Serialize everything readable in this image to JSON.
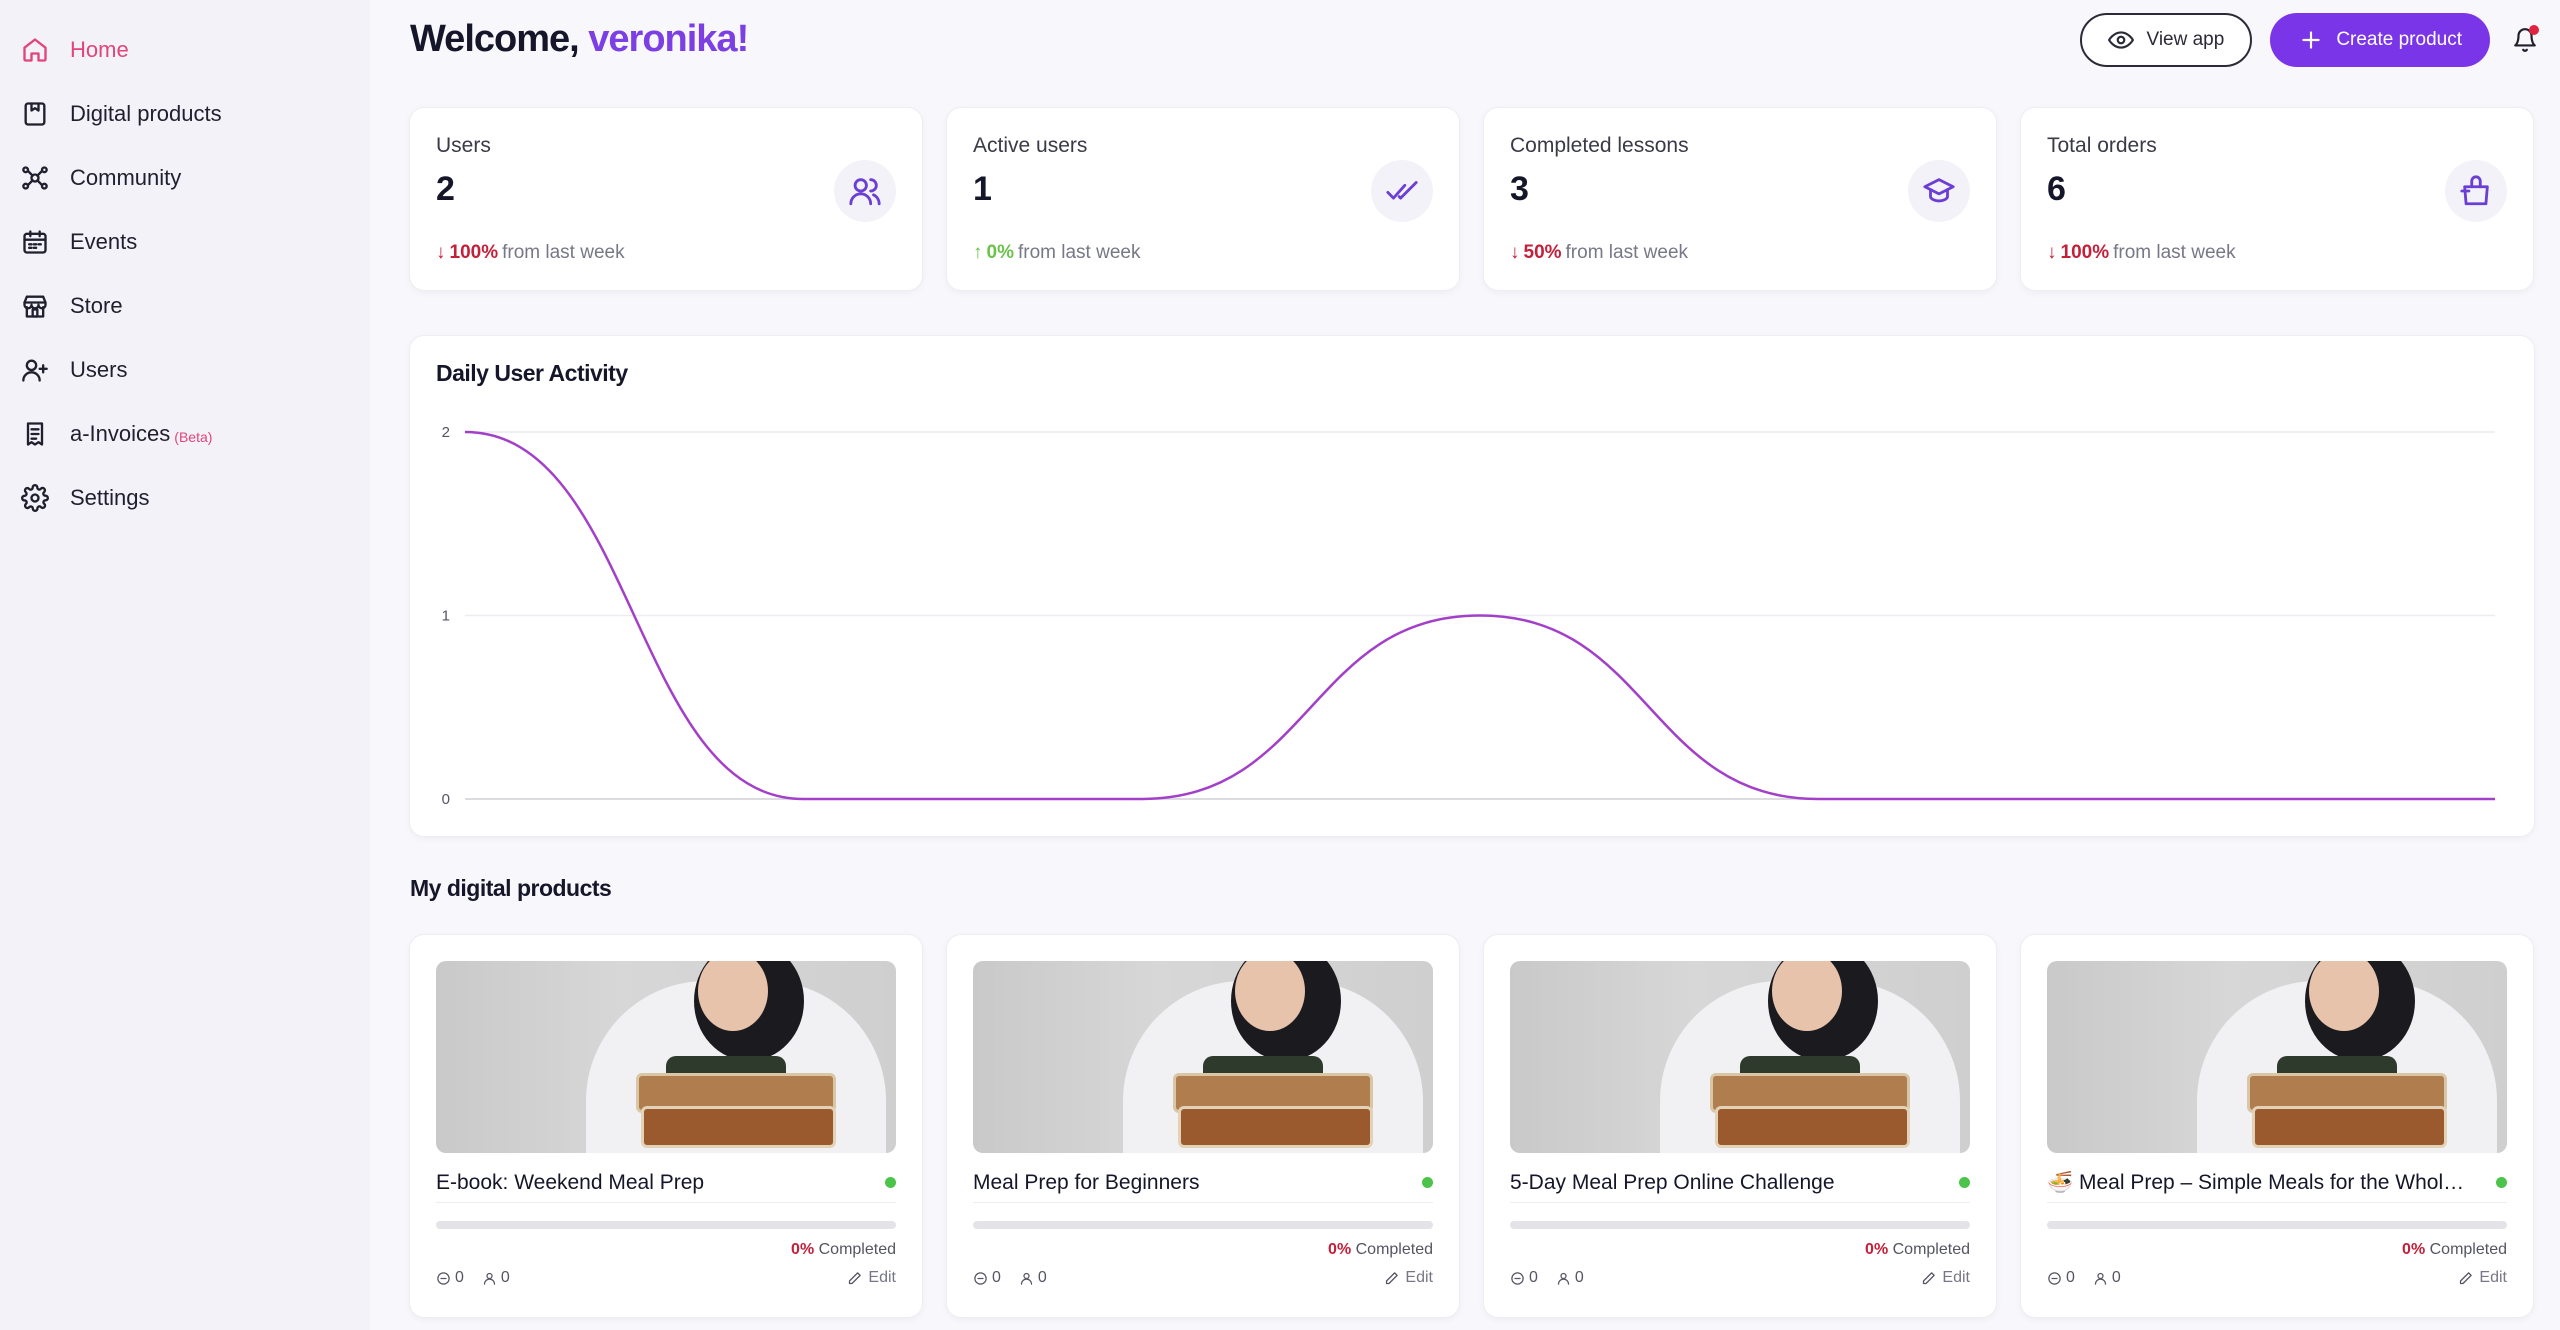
{
  "sidebar": {
    "items": [
      {
        "label": "Home",
        "icon": "home-icon",
        "active": true
      },
      {
        "label": "Digital products",
        "icon": "digital-products-icon"
      },
      {
        "label": "Community",
        "icon": "community-icon"
      },
      {
        "label": "Events",
        "icon": "calendar-icon"
      },
      {
        "label": "Store",
        "icon": "store-icon"
      },
      {
        "label": "Users",
        "icon": "users-icon"
      },
      {
        "label": "a-Invoices",
        "icon": "invoice-icon",
        "badge": "(Beta)"
      },
      {
        "label": "Settings",
        "icon": "gear-icon"
      }
    ]
  },
  "header": {
    "welcome": "Welcome,",
    "name": "veronika!",
    "view_app": "View app",
    "create_product": "Create product"
  },
  "stats": [
    {
      "label": "Users",
      "value": "2",
      "pct": "100%",
      "suffix": "from last week",
      "direction": "down",
      "icon": "users-icon"
    },
    {
      "label": "Active users",
      "value": "1",
      "pct": "0%",
      "suffix": "from last week",
      "direction": "up",
      "icon": "double-check-icon"
    },
    {
      "label": "Completed lessons",
      "value": "3",
      "pct": "50%",
      "suffix": "from last week",
      "direction": "down",
      "icon": "graduation-cap-icon"
    },
    {
      "label": "Total orders",
      "value": "6",
      "pct": "100%",
      "suffix": "from last week",
      "direction": "down",
      "icon": "shopping-bag-icon"
    }
  ],
  "chart_data": {
    "type": "line",
    "title": "Daily User Activity",
    "x": [
      0,
      1,
      2,
      3,
      4,
      5,
      6
    ],
    "series": [
      {
        "values": [
          2,
          0,
          0,
          1,
          0,
          0,
          0
        ]
      }
    ],
    "ylim": [
      0,
      2
    ],
    "yticks": [
      "0",
      "1",
      "2"
    ],
    "grid": true,
    "color": "#a340c9"
  },
  "products_section": {
    "title": "My digital products"
  },
  "products": [
    {
      "title": "E-book: Weekend Meal Prep",
      "progress": 0,
      "pct": "0%",
      "completed_label": "Completed",
      "comments": "0",
      "users": "0",
      "edit": "Edit"
    },
    {
      "title": "Meal Prep for Beginners",
      "progress": 0,
      "pct": "0%",
      "completed_label": "Completed",
      "comments": "0",
      "users": "0",
      "edit": "Edit"
    },
    {
      "title": "5-Day Meal Prep Online Challenge",
      "progress": 0,
      "pct": "0%",
      "completed_label": "Completed",
      "comments": "0",
      "users": "0",
      "edit": "Edit"
    },
    {
      "title": "🍜 Meal Prep – Simple Meals for the Whole…",
      "progress": 0,
      "pct": "0%",
      "completed_label": "Completed",
      "comments": "0",
      "users": "0",
      "edit": "Edit"
    }
  ]
}
